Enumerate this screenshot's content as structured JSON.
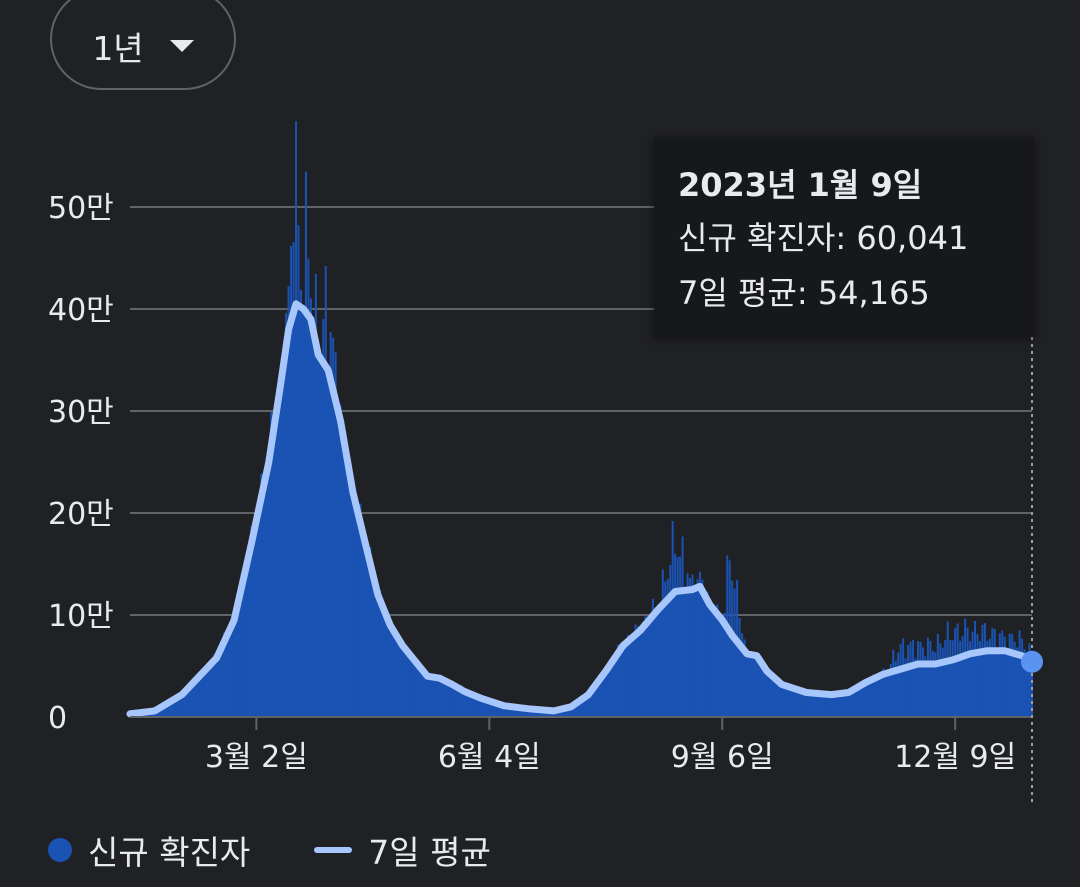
{
  "range_selector": {
    "label": "1년"
  },
  "tooltip": {
    "date": "2023년 1월 9일",
    "new_cases_label": "신규 확진자",
    "new_cases_value": "60,041",
    "avg_label": "7일 평균",
    "avg_value": "54,165"
  },
  "legend": {
    "bars": "신규 확진자",
    "line": "7일 평균"
  },
  "colors": {
    "background": "#202124",
    "bar": "#1a53b3",
    "line": "#a7c6fb",
    "grid": "#5f6368",
    "text": "#e8eaed"
  },
  "chart_data": {
    "type": "bar",
    "title": "",
    "xlabel": "",
    "ylabel": "",
    "ylim": [
      0,
      550000
    ],
    "y_ticks": [
      {
        "value": 0,
        "label": "0"
      },
      {
        "value": 100000,
        "label": "10만"
      },
      {
        "value": 200000,
        "label": "20만"
      },
      {
        "value": 300000,
        "label": "30만"
      },
      {
        "value": 400000,
        "label": "40만"
      },
      {
        "value": 500000,
        "label": "50만"
      }
    ],
    "x_range": [
      "2022-01-10",
      "2023-01-09"
    ],
    "x_ticks": [
      {
        "date": "2022-03-02",
        "label": "3월 2일"
      },
      {
        "date": "2022-06-04",
        "label": "6월 4일"
      },
      {
        "date": "2022-09-06",
        "label": "9월 6일"
      },
      {
        "date": "2022-12-09",
        "label": "12월 9일"
      }
    ],
    "grid": true,
    "legend_position": "bottom-left",
    "selected_date": "2023-01-09",
    "series": [
      {
        "name": "7일 평균",
        "type": "line",
        "points": [
          [
            "2022-01-10",
            3000
          ],
          [
            "2022-01-20",
            6000
          ],
          [
            "2022-01-31",
            22000
          ],
          [
            "2022-02-07",
            40000
          ],
          [
            "2022-02-14",
            58000
          ],
          [
            "2022-02-21",
            95000
          ],
          [
            "2022-02-28",
            170000
          ],
          [
            "2022-03-07",
            250000
          ],
          [
            "2022-03-12",
            330000
          ],
          [
            "2022-03-15",
            380000
          ],
          [
            "2022-03-18",
            405000
          ],
          [
            "2022-03-21",
            400000
          ],
          [
            "2022-03-24",
            390000
          ],
          [
            "2022-03-27",
            355000
          ],
          [
            "2022-03-31",
            340000
          ],
          [
            "2022-04-05",
            290000
          ],
          [
            "2022-04-10",
            220000
          ],
          [
            "2022-04-15",
            170000
          ],
          [
            "2022-04-20",
            120000
          ],
          [
            "2022-04-25",
            90000
          ],
          [
            "2022-04-30",
            70000
          ],
          [
            "2022-05-05",
            55000
          ],
          [
            "2022-05-10",
            40000
          ],
          [
            "2022-05-15",
            38000
          ],
          [
            "2022-05-20",
            32000
          ],
          [
            "2022-05-25",
            25000
          ],
          [
            "2022-06-01",
            18000
          ],
          [
            "2022-06-10",
            11000
          ],
          [
            "2022-06-20",
            8000
          ],
          [
            "2022-06-30",
            6000
          ],
          [
            "2022-07-07",
            10000
          ],
          [
            "2022-07-14",
            22000
          ],
          [
            "2022-07-21",
            45000
          ],
          [
            "2022-07-28",
            70000
          ],
          [
            "2022-08-04",
            85000
          ],
          [
            "2022-08-11",
            105000
          ],
          [
            "2022-08-18",
            123000
          ],
          [
            "2022-08-25",
            125000
          ],
          [
            "2022-08-28",
            128000
          ],
          [
            "2022-09-01",
            110000
          ],
          [
            "2022-09-06",
            95000
          ],
          [
            "2022-09-10",
            80000
          ],
          [
            "2022-09-16",
            62000
          ],
          [
            "2022-09-20",
            60000
          ],
          [
            "2022-09-24",
            45000
          ],
          [
            "2022-09-30",
            32000
          ],
          [
            "2022-10-10",
            24000
          ],
          [
            "2022-10-20",
            22000
          ],
          [
            "2022-10-27",
            24000
          ],
          [
            "2022-11-03",
            34000
          ],
          [
            "2022-11-10",
            42000
          ],
          [
            "2022-11-17",
            47000
          ],
          [
            "2022-11-24",
            52000
          ],
          [
            "2022-12-01",
            52000
          ],
          [
            "2022-12-08",
            56000
          ],
          [
            "2022-12-15",
            62000
          ],
          [
            "2022-12-22",
            65000
          ],
          [
            "2022-12-29",
            65000
          ],
          [
            "2023-01-05",
            60000
          ],
          [
            "2023-01-09",
            54165
          ]
        ]
      },
      {
        "name": "신규 확진자",
        "type": "bar",
        "points": [
          [
            "2022-01-10",
            3000
          ],
          [
            "2022-01-20",
            6000
          ],
          [
            "2022-01-31",
            22000
          ],
          [
            "2022-02-07",
            40000
          ],
          [
            "2022-02-14",
            60000
          ],
          [
            "2022-02-21",
            100000
          ],
          [
            "2022-02-28",
            170000
          ],
          [
            "2022-03-07",
            255000
          ],
          [
            "2022-03-12",
            340000
          ],
          [
            "2022-03-15",
            400000
          ],
          [
            "2022-03-17",
            570000
          ],
          [
            "2022-03-21",
            420000
          ],
          [
            "2022-03-23",
            490000
          ],
          [
            "2022-03-27",
            350000
          ],
          [
            "2022-03-31",
            420000
          ],
          [
            "2022-04-05",
            290000
          ],
          [
            "2022-04-10",
            220000
          ],
          [
            "2022-04-15",
            170000
          ],
          [
            "2022-04-20",
            120000
          ],
          [
            "2022-04-25",
            90000
          ],
          [
            "2022-04-30",
            70000
          ],
          [
            "2022-05-05",
            55000
          ],
          [
            "2022-05-10",
            40000
          ],
          [
            "2022-05-15",
            38000
          ],
          [
            "2022-05-20",
            32000
          ],
          [
            "2022-05-25",
            25000
          ],
          [
            "2022-06-01",
            18000
          ],
          [
            "2022-06-10",
            11000
          ],
          [
            "2022-06-20",
            8000
          ],
          [
            "2022-06-30",
            6000
          ],
          [
            "2022-07-07",
            10000
          ],
          [
            "2022-07-14",
            22000
          ],
          [
            "2022-07-21",
            45000
          ],
          [
            "2022-07-28",
            70000
          ],
          [
            "2022-08-04",
            90000
          ],
          [
            "2022-08-11",
            110000
          ],
          [
            "2022-08-18",
            180000
          ],
          [
            "2022-08-25",
            130000
          ],
          [
            "2022-08-28",
            140000
          ],
          [
            "2022-09-01",
            110000
          ],
          [
            "2022-09-06",
            95000
          ],
          [
            "2022-09-09",
            165000
          ],
          [
            "2022-09-16",
            62000
          ],
          [
            "2022-09-20",
            60000
          ],
          [
            "2022-09-24",
            45000
          ],
          [
            "2022-09-30",
            32000
          ],
          [
            "2022-10-10",
            24000
          ],
          [
            "2022-10-20",
            22000
          ],
          [
            "2022-10-27",
            24000
          ],
          [
            "2022-11-03",
            34000
          ],
          [
            "2022-11-10",
            42000
          ],
          [
            "2022-11-17",
            72000
          ],
          [
            "2022-11-24",
            72000
          ],
          [
            "2022-12-01",
            72000
          ],
          [
            "2022-12-08",
            86000
          ],
          [
            "2022-12-15",
            88000
          ],
          [
            "2022-12-22",
            86000
          ],
          [
            "2022-12-29",
            80000
          ],
          [
            "2023-01-05",
            78000
          ],
          [
            "2023-01-09",
            60041
          ]
        ]
      }
    ]
  }
}
